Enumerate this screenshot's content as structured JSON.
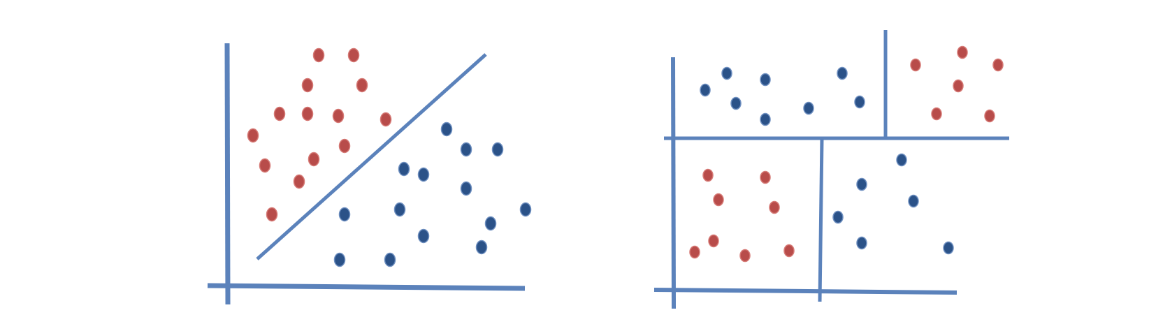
{
  "colors": {
    "axis": "#5B82BB",
    "red_fill": "#B84C4A",
    "red_stroke": "#D67A76",
    "blue_fill": "#2B5288",
    "blue_stroke": "#6E8FC0"
  },
  "diagrams": [
    {
      "name": "linear-separator",
      "classes": [
        "red",
        "blue"
      ]
    },
    {
      "name": "axis-aligned-partition",
      "classes": [
        "red",
        "blue"
      ]
    }
  ]
}
